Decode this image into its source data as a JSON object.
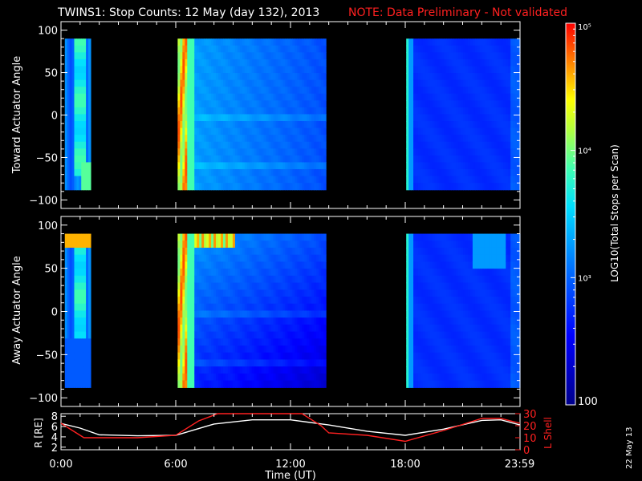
{
  "header": {
    "title": "TWINS1: Stop Counts: 12 May (day 132), 2013",
    "note": "NOTE: Data Preliminary - Not validated",
    "note_color": "#ff2020"
  },
  "side_date": "22 May 13",
  "chart_data": [
    {
      "type": "heatmap",
      "name": "toward",
      "ylabel": "Toward Actuator Angle",
      "ylim": [
        -110,
        110
      ],
      "yticks": [
        "100",
        "50",
        "0",
        "−50",
        "−100"
      ],
      "ytick_values": [
        100,
        50,
        0,
        -50,
        -100
      ],
      "angle_range": [
        -88,
        90
      ],
      "xlim_hours": [
        0,
        24
      ],
      "data_segments_hours": [
        [
          0.2,
          1.55
        ],
        [
          6.1,
          13.85
        ],
        [
          18.05,
          24
        ]
      ]
    },
    {
      "type": "heatmap",
      "name": "away",
      "ylabel": "Away Actuator Angle",
      "ylim": [
        -110,
        110
      ],
      "yticks": [
        "100",
        "50",
        "0",
        "−50",
        "−100"
      ],
      "ytick_values": [
        100,
        50,
        0,
        -50,
        -100
      ],
      "angle_range": [
        -88,
        90
      ],
      "xlim_hours": [
        0,
        24
      ],
      "data_segments_hours": [
        [
          0.2,
          1.55
        ],
        [
          6.1,
          13.85
        ],
        [
          18.05,
          24
        ]
      ]
    },
    {
      "type": "line",
      "name": "orbit",
      "xlabel": "Time (UT)",
      "xtick_labels": [
        "0:00",
        "6:00",
        "12:00",
        "18:00",
        "23:59"
      ],
      "xtick_hours": [
        0,
        6,
        12,
        18,
        23.98
      ],
      "left_axis": {
        "label": "R [RE]",
        "ticks": [
          "8",
          "6",
          "4",
          "2"
        ],
        "tick_values": [
          8,
          6,
          4,
          2
        ],
        "ylim": [
          1.5,
          8.5
        ]
      },
      "right_axis": {
        "label": "L Shell",
        "ticks": [
          "30",
          "20",
          "10",
          "0"
        ],
        "tick_values": [
          30,
          20,
          10,
          0
        ],
        "ylim": [
          0,
          30
        ]
      },
      "series": [
        {
          "name": "R [RE]",
          "color": "#ffffff",
          "axis": "left",
          "x": [
            0,
            1,
            2,
            4,
            6,
            8,
            10,
            12,
            14,
            16,
            18,
            20,
            22,
            23,
            24
          ],
          "y": [
            6.6,
            5.7,
            4.4,
            4.2,
            4.3,
            6.5,
            7.3,
            7.3,
            6.3,
            5.1,
            4.3,
            5.5,
            7.2,
            7.3,
            6.3
          ]
        },
        {
          "name": "L Shell",
          "color": "#ff2020",
          "axis": "right",
          "x": [
            0,
            1.2,
            4,
            6,
            7.2,
            8.2,
            12.6,
            13.6,
            14,
            16,
            18,
            20,
            22,
            23,
            24
          ],
          "y": [
            22,
            10,
            10,
            12,
            24,
            32,
            32,
            20,
            14,
            12,
            7,
            16,
            26,
            26,
            22
          ]
        }
      ]
    }
  ],
  "colorbar": {
    "label": "LOG10(Total Stops per Scan)",
    "ticks": [
      "10⁵",
      "10⁴",
      "10³",
      "100"
    ],
    "tick_values": [
      100000,
      10000,
      1000,
      100
    ],
    "scale": "log"
  }
}
